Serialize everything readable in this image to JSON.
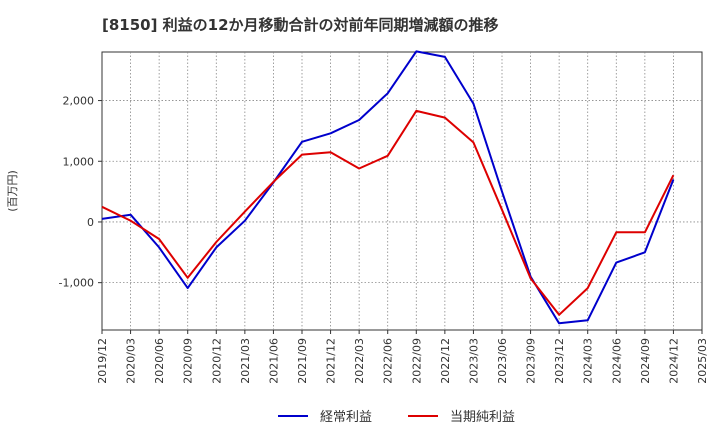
{
  "chart_data": {
    "type": "line",
    "title": "[8150]  利益の12か月移動合計の対前年同期増減額の推移",
    "ylabel": "(百万円)",
    "xlabel": "",
    "ylim": [
      -1780,
      2800
    ],
    "yticks": [
      -1000,
      0,
      1000,
      2000
    ],
    "ytick_labels": [
      "-1,000",
      "0",
      "1,000",
      "2,000"
    ],
    "x": [
      "2019/12",
      "2020/03",
      "2020/06",
      "2020/09",
      "2020/12",
      "2021/03",
      "2021/06",
      "2021/09",
      "2021/12",
      "2022/03",
      "2022/06",
      "2022/09",
      "2022/12",
      "2023/03",
      "2023/06",
      "2023/09",
      "2023/12",
      "2024/03",
      "2024/06",
      "2024/09",
      "2024/12",
      "2025/03"
    ],
    "grid": true,
    "legend_position": "bottom-center",
    "series": [
      {
        "name": "経常利益",
        "color": "#0000cc",
        "values": [
          50,
          120,
          -420,
          -1090,
          -420,
          20,
          650,
          1320,
          1460,
          1680,
          2120,
          2810,
          2720,
          1950,
          500,
          -900,
          -1670,
          -1620,
          -670,
          -500,
          700,
          null
        ]
      },
      {
        "name": "当期純利益",
        "color": "#dd0000",
        "values": [
          250,
          20,
          -280,
          -920,
          -330,
          170,
          660,
          1110,
          1150,
          880,
          1090,
          1830,
          1720,
          1310,
          200,
          -930,
          -1530,
          -1090,
          -170,
          -170,
          770,
          null
        ]
      }
    ]
  }
}
